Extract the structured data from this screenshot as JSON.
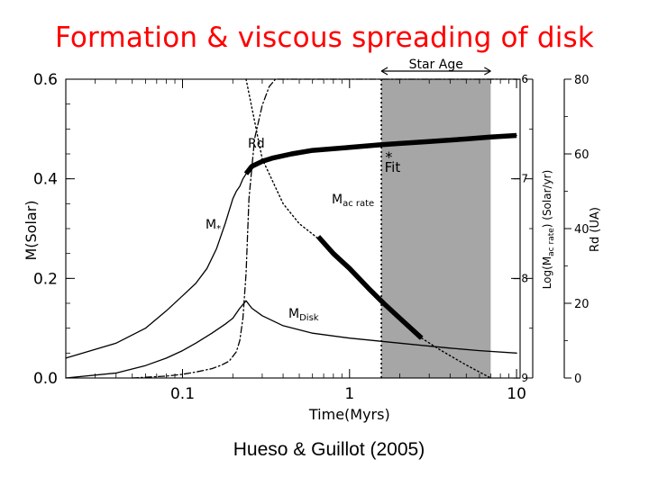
{
  "slide": {
    "title": "Formation & viscous spreading of disk",
    "title_color": "#ff0000",
    "caption": "Hueso & Guillot (2005)"
  },
  "chart_data": {
    "type": "line",
    "title": "",
    "xlabel": "Time(Myrs)",
    "xscale": "log",
    "xlim": [
      0.02,
      10.5
    ],
    "x_ticks": [
      {
        "value": 0.1,
        "label": "0.1"
      },
      {
        "value": 1,
        "label": "1"
      },
      {
        "value": 10,
        "label": "10"
      }
    ],
    "ylabel": "M(Solar)",
    "ylim": [
      0,
      0.6
    ],
    "y_ticks": [
      {
        "value": 0.0,
        "label": "0.0"
      },
      {
        "value": 0.2,
        "label": "0.2"
      },
      {
        "value": 0.4,
        "label": "0.4"
      },
      {
        "value": 0.6,
        "label": "0.6"
      }
    ],
    "y2": {
      "label_parts": [
        "Log(M",
        "ac rate",
        ") (Solar/yr)"
      ],
      "ylim": [
        -9,
        -6
      ],
      "ticks": [
        {
          "value": -6,
          "label": "−6"
        },
        {
          "value": -7,
          "label": "−7"
        },
        {
          "value": -8,
          "label": "−8"
        },
        {
          "value": -9,
          "label": "−9"
        }
      ]
    },
    "y3": {
      "label": "Rd (UA)",
      "ylim": [
        0,
        80
      ],
      "ticks": [
        {
          "value": 0,
          "label": "0"
        },
        {
          "value": 20,
          "label": "20"
        },
        {
          "value": 40,
          "label": "40"
        },
        {
          "value": 60,
          "label": "60"
        },
        {
          "value": 80,
          "label": "80"
        }
      ]
    },
    "shaded_region": {
      "label": "Star Age",
      "x_range": [
        1.55,
        7.0
      ],
      "color": "#a6a6a6"
    },
    "series": [
      {
        "name": "M*",
        "label_main": "M",
        "label_sub": "*",
        "style": "solid",
        "x": [
          0.02,
          0.04,
          0.06,
          0.08,
          0.1,
          0.12,
          0.14,
          0.16,
          0.18,
          0.2,
          0.21,
          0.22,
          0.23,
          0.235,
          0.24,
          0.26,
          0.3,
          0.4,
          0.6,
          1.0,
          1.5,
          2,
          3,
          5,
          7,
          10
        ],
        "y": [
          0.04,
          0.07,
          0.1,
          0.135,
          0.165,
          0.19,
          0.22,
          0.26,
          0.31,
          0.36,
          0.375,
          0.385,
          0.4,
          0.405,
          0.41,
          0.425,
          0.435,
          0.445,
          0.455,
          0.463,
          0.468,
          0.471,
          0.475,
          0.48,
          0.484,
          0.487
        ]
      },
      {
        "name": "MDisk",
        "label_main": "M",
        "label_sub": "Disk",
        "style": "solid",
        "x": [
          0.02,
          0.04,
          0.06,
          0.08,
          0.1,
          0.12,
          0.15,
          0.18,
          0.2,
          0.22,
          0.24,
          0.26,
          0.3,
          0.4,
          0.6,
          1.0,
          2,
          4,
          6,
          10
        ],
        "y": [
          0.0,
          0.01,
          0.025,
          0.04,
          0.055,
          0.07,
          0.09,
          0.108,
          0.12,
          0.14,
          0.155,
          0.14,
          0.125,
          0.105,
          0.09,
          0.08,
          0.07,
          0.06,
          0.055,
          0.05
        ]
      },
      {
        "name": "Mac rate",
        "label_main": "M",
        "label_sub": "ac rate",
        "style": "dotted",
        "axis": "y2",
        "x": [
          0.24,
          0.3,
          0.4,
          0.5,
          0.65,
          0.8,
          1.0,
          1.3,
          1.6,
          2.0,
          2.7,
          3.5,
          5.0,
          7.0
        ],
        "y": [
          -6.0,
          -6.8,
          -7.25,
          -7.45,
          -7.6,
          -7.75,
          -7.9,
          -8.1,
          -8.25,
          -8.4,
          -8.6,
          -8.72,
          -8.87,
          -9.0
        ]
      },
      {
        "name": "Rd",
        "label_main": "Rd",
        "label_sub": "",
        "style": "dashdot",
        "axis": "y3",
        "x": [
          0.05,
          0.08,
          0.1,
          0.12,
          0.15,
          0.17,
          0.19,
          0.21,
          0.22,
          0.23,
          0.24,
          0.25,
          0.27,
          0.3,
          0.33,
          0.36,
          0.5,
          1,
          2,
          5,
          10
        ],
        "y": [
          0,
          0.5,
          1.0,
          1.6,
          2.5,
          3.4,
          4.5,
          7,
          10,
          16,
          28,
          48,
          64,
          73,
          78,
          80,
          80,
          80,
          80,
          80,
          80
        ]
      },
      {
        "name": "thick",
        "style": "thick",
        "x": [
          0.24,
          0.26,
          0.3,
          0.35,
          0.45,
          0.6,
          1.0,
          1.5,
          2,
          3,
          5,
          7,
          10
        ],
        "y": [
          0.41,
          0.425,
          0.435,
          0.442,
          0.45,
          0.457,
          0.463,
          0.468,
          0.471,
          0.475,
          0.48,
          0.484,
          0.487
        ]
      },
      {
        "name": "thick-rate",
        "style": "thick",
        "axis": "y2",
        "x": [
          0.65,
          0.8,
          1.0,
          1.3,
          1.6,
          2.0,
          2.7
        ],
        "y": [
          -7.58,
          -7.75,
          -7.9,
          -8.1,
          -8.25,
          -8.4,
          -8.6
        ]
      }
    ],
    "annotations": [
      {
        "text": "Fit",
        "x": 1.72,
        "y": 0.41,
        "marker_y": 0.45
      }
    ]
  }
}
